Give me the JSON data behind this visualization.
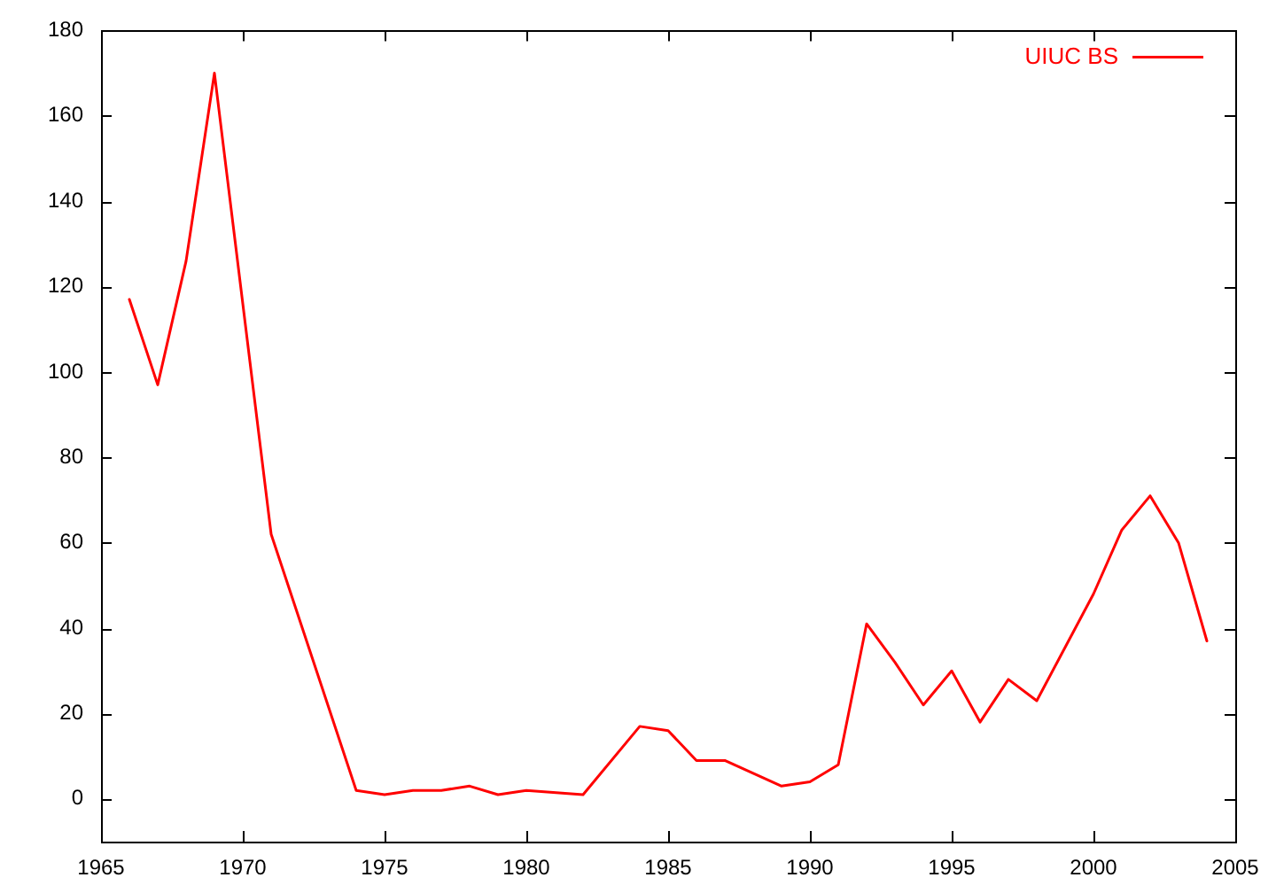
{
  "chart_data": {
    "type": "line",
    "x": [
      1966,
      1967,
      1968,
      1969,
      1971,
      1974,
      1975,
      1976,
      1977,
      1978,
      1979,
      1980,
      1982,
      1984,
      1985,
      1986,
      1987,
      1989,
      1990,
      1991,
      1992,
      1993,
      1994,
      1995,
      1996,
      1997,
      1998,
      2000,
      2001,
      2002,
      2003,
      2004
    ],
    "series": [
      {
        "name": "UIUC BS",
        "color": "#ff0000",
        "values": [
          117,
          97,
          126,
          170,
          62,
          2,
          1,
          2,
          2,
          3,
          1,
          2,
          1,
          17,
          16,
          9,
          9,
          3,
          4,
          8,
          41,
          32,
          22,
          30,
          18,
          28,
          23,
          48,
          63,
          71,
          60,
          37
        ]
      }
    ],
    "xlim": [
      1965,
      2005
    ],
    "xticks": [
      1965,
      1970,
      1975,
      1980,
      1985,
      1990,
      1995,
      2000,
      2005
    ],
    "ylim": [
      -10,
      180
    ],
    "yticks": [
      0,
      20,
      40,
      60,
      80,
      100,
      120,
      140,
      160,
      180
    ],
    "legend": "top right",
    "marker": "none",
    "line_style": "solid"
  }
}
